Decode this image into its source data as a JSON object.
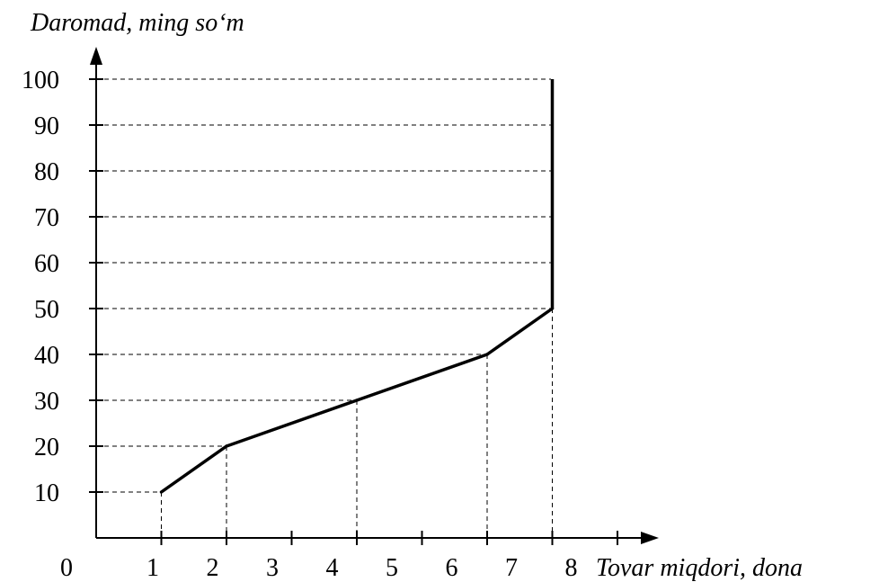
{
  "chart_data": {
    "type": "line",
    "ylabel": "Daromad, ming so‘m",
    "xlabel": "Tovar miqdori, dona",
    "origin_label": "0",
    "xlim": [
      0,
      8
    ],
    "ylim": [
      0,
      100
    ],
    "x_ticks": [
      1,
      2,
      3,
      4,
      5,
      6,
      7,
      8
    ],
    "y_ticks": [
      10,
      20,
      30,
      40,
      50,
      60,
      70,
      80,
      90,
      100
    ],
    "grid": "dashed horizontal lines at every y tick",
    "series": [
      {
        "points": [
          {
            "x": 1,
            "y": 10
          },
          {
            "x": 2,
            "y": 20
          },
          {
            "x": 4,
            "y": 30
          },
          {
            "x": 6,
            "y": 40
          },
          {
            "x": 7,
            "y": 50
          }
        ],
        "vertical_segment": {
          "x": 7,
          "y_from": 50,
          "y_to": 100
        }
      }
    ],
    "x_axis_labels": [
      "1",
      "2",
      "3",
      "4",
      "5",
      "6",
      "7",
      "8"
    ],
    "reference_dashes": [
      {
        "x": 1,
        "y": 10
      },
      {
        "x": 2,
        "y": 20
      },
      {
        "x": 4,
        "y": 30
      },
      {
        "x": 6,
        "y": 40
      },
      {
        "x": 7,
        "y": 50
      }
    ],
    "line_color": "#000000"
  }
}
